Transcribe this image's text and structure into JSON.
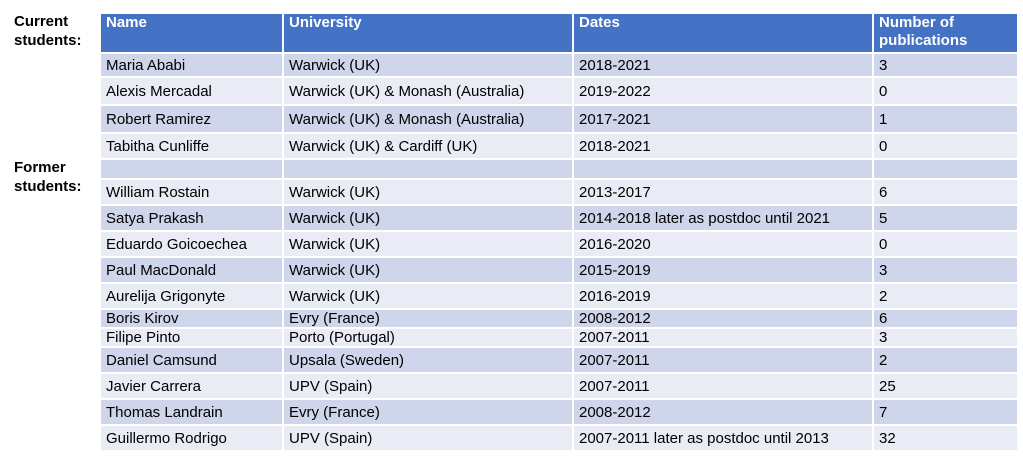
{
  "labels": {
    "current": "Current students:",
    "former": "Former students:"
  },
  "headers": [
    "Name",
    "University",
    "Dates",
    "Number of publications"
  ],
  "colors": {
    "header": "#4472c4",
    "row_dark": "#cfd5ea",
    "row_light": "#e9ebf5"
  },
  "current_students": [
    {
      "name": "Maria Ababi",
      "university": "Warwick (UK)",
      "dates": "2018-2021",
      "pubs": "3"
    },
    {
      "name": "Alexis Mercadal",
      "university": "Warwick (UK) & Monash (Australia)",
      "dates": "2019-2022",
      "pubs": "0"
    },
    {
      "name": "Robert Ramirez",
      "university": "Warwick (UK) & Monash (Australia)",
      "dates": "2017-2021",
      "pubs": "1"
    },
    {
      "name": "Tabitha Cunliffe",
      "university": "Warwick (UK) & Cardiff (UK)",
      "dates": "2018-2021",
      "pubs": "0"
    }
  ],
  "former_students": [
    {
      "name": " William Rostain",
      "university": "Warwick (UK)",
      "dates": "2013-2017",
      "pubs": "6"
    },
    {
      "name": " Satya Prakash",
      "university": "Warwick (UK)",
      "dates": "2014-2018 later as postdoc until 2021",
      "pubs": "5"
    },
    {
      "name": " Eduardo Goicoechea",
      "university": "Warwick (UK)",
      "dates": "2016-2020",
      "pubs": "0"
    },
    {
      "name": " Paul MacDonald",
      "university": "Warwick (UK)",
      "dates": "2015-2019",
      "pubs": "3"
    },
    {
      "name": " Aurelija Grigonyte",
      "university": "Warwick (UK)",
      "dates": "2016-2019",
      "pubs": "2"
    },
    {
      "name": " Boris Kirov",
      "university": "Evry (France)",
      "dates": "2008-2012",
      "pubs": "6"
    },
    {
      "name": " Filipe Pinto",
      "university": "Porto (Portugal)",
      "dates": "2007-2011",
      "pubs": "3"
    },
    {
      "name": " Daniel Camsund",
      "university": "Upsala (Sweden)",
      "dates": "2007-2011",
      "pubs": "2"
    },
    {
      "name": " Javier Carrera",
      "university": "UPV (Spain)",
      "dates": "2007-2011",
      "pubs": "25"
    },
    {
      "name": " Thomas Landrain",
      "university": "Evry (France)",
      "dates": "2008-2012",
      "pubs": "7"
    },
    {
      "name": " Guillermo Rodrigo",
      "university": "UPV (Spain)",
      "dates": "2007-2011 later as postdoc until 2013",
      "pubs": "32"
    }
  ]
}
